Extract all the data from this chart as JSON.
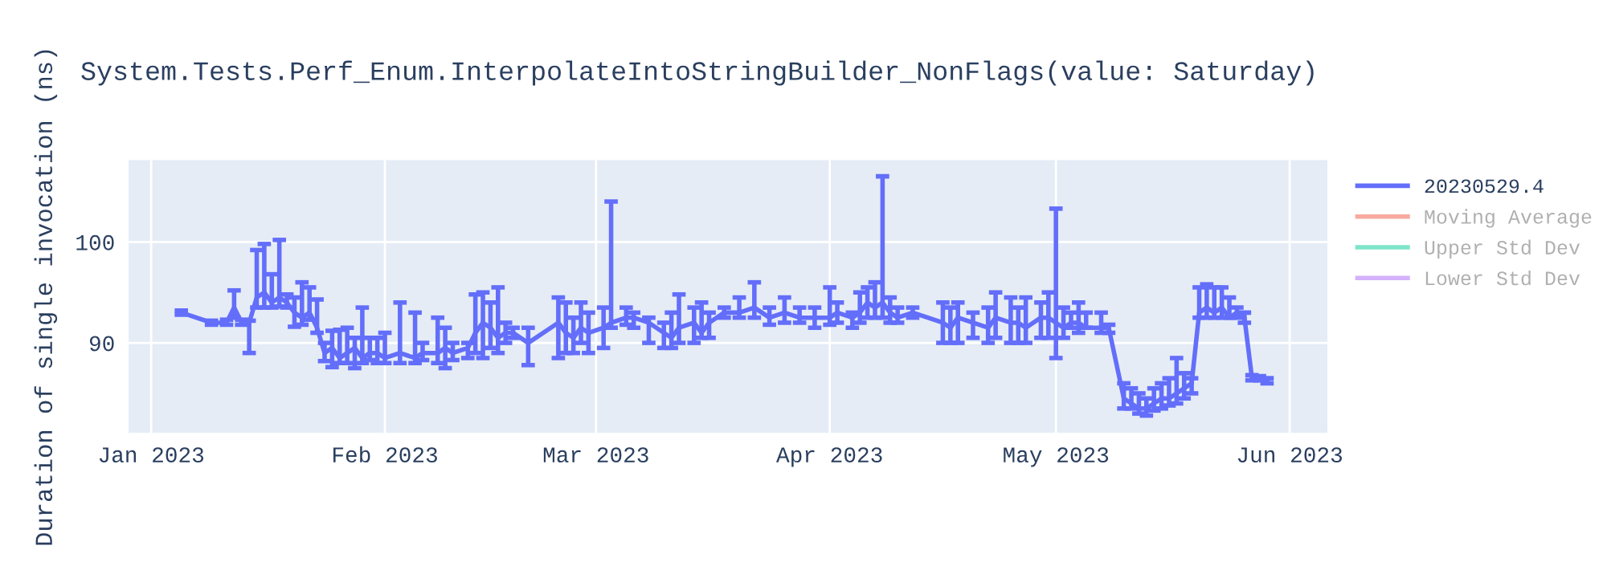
{
  "chart_data": {
    "type": "line",
    "title": "System.Tests.Perf_Enum.InterpolateIntoStringBuilder_NonFlags(value: Saturday)",
    "ylabel": "Duration of single invocation (ns)",
    "xlim": [
      "2022-12-29",
      "2023-06-06"
    ],
    "ylim": [
      81.1,
      108.1
    ],
    "xticks": [
      {
        "value": "2023-01-01",
        "label": "Jan 2023"
      },
      {
        "value": "2023-02-01",
        "label": "Feb 2023"
      },
      {
        "value": "2023-03-01",
        "label": "Mar 2023"
      },
      {
        "value": "2023-04-01",
        "label": "Apr 2023"
      },
      {
        "value": "2023-05-01",
        "label": "May 2023"
      },
      {
        "value": "2023-06-01",
        "label": "Jun 2023"
      }
    ],
    "yticks": [
      90,
      100
    ],
    "grid": true,
    "legend": "right",
    "marker": "none",
    "line_style": "solid",
    "x": [
      "2023-01-05",
      "2023-01-09",
      "2023-01-11",
      "2023-01-12",
      "2023-01-13",
      "2023-01-14",
      "2023-01-15",
      "2023-01-16",
      "2023-01-17",
      "2023-01-18",
      "2023-01-19",
      "2023-01-20",
      "2023-01-21",
      "2023-01-22",
      "2023-01-23",
      "2023-01-24",
      "2023-01-25",
      "2023-01-26",
      "2023-01-27",
      "2023-01-28",
      "2023-01-29",
      "2023-01-30",
      "2023-01-31",
      "2023-02-01",
      "2023-02-03",
      "2023-02-05",
      "2023-02-06",
      "2023-02-08",
      "2023-02-09",
      "2023-02-10",
      "2023-02-12",
      "2023-02-13",
      "2023-02-14",
      "2023-02-15",
      "2023-02-16",
      "2023-02-17",
      "2023-02-18",
      "2023-02-20",
      "2023-02-24",
      "2023-02-25",
      "2023-02-26",
      "2023-02-27",
      "2023-02-28",
      "2023-03-02",
      "2023-03-03",
      "2023-03-05",
      "2023-03-06",
      "2023-03-08",
      "2023-03-10",
      "2023-03-11",
      "2023-03-12",
      "2023-03-14",
      "2023-03-15",
      "2023-03-16",
      "2023-03-18",
      "2023-03-20",
      "2023-03-22",
      "2023-03-24",
      "2023-03-26",
      "2023-03-28",
      "2023-03-30",
      "2023-04-01",
      "2023-04-02",
      "2023-04-04",
      "2023-04-05",
      "2023-04-06",
      "2023-04-07",
      "2023-04-08",
      "2023-04-09",
      "2023-04-10",
      "2023-04-12",
      "2023-04-16",
      "2023-04-17",
      "2023-04-18",
      "2023-04-20",
      "2023-04-22",
      "2023-04-23",
      "2023-04-25",
      "2023-04-26",
      "2023-04-27",
      "2023-04-29",
      "2023-04-30",
      "2023-05-01",
      "2023-05-02",
      "2023-05-03",
      "2023-05-04",
      "2023-05-05",
      "2023-05-07",
      "2023-05-08",
      "2023-05-10",
      "2023-05-11",
      "2023-05-12",
      "2023-05-13",
      "2023-05-14",
      "2023-05-15",
      "2023-05-16",
      "2023-05-17",
      "2023-05-18",
      "2023-05-19",
      "2023-05-20",
      "2023-05-21",
      "2023-05-22",
      "2023-05-23",
      "2023-05-24",
      "2023-05-25",
      "2023-05-26",
      "2023-05-27",
      "2023-05-28",
      "2023-05-29"
    ],
    "series": [
      {
        "name": "20230529.4",
        "color": "#636efa",
        "values": [
          93.0,
          92.0,
          92.0,
          93.5,
          92.0,
          92.0,
          94.5,
          95.0,
          94.0,
          94.5,
          94.0,
          93.0,
          92.5,
          93.0,
          91.5,
          89.0,
          89.5,
          88.5,
          89.0,
          89.5,
          88.5,
          89.0,
          89.0,
          88.5,
          89.0,
          88.5,
          89.0,
          89.0,
          89.5,
          89.0,
          89.5,
          91.0,
          92.0,
          91.5,
          90.5,
          91.0,
          91.0,
          90.0,
          92.0,
          91.0,
          90.5,
          91.5,
          91.0,
          91.5,
          92.0,
          92.5,
          92.5,
          92.0,
          91.0,
          90.5,
          91.5,
          92.0,
          91.0,
          92.0,
          93.0,
          93.0,
          93.5,
          92.5,
          93.0,
          92.5,
          92.5,
          92.5,
          93.0,
          92.5,
          93.0,
          94.0,
          93.5,
          94.0,
          93.0,
          92.5,
          93.0,
          92.0,
          91.5,
          92.5,
          92.0,
          91.5,
          92.5,
          92.0,
          92.0,
          91.5,
          92.5,
          92.5,
          92.0,
          91.5,
          92.0,
          92.0,
          91.5,
          91.5,
          91.5,
          84.5,
          84.0,
          83.5,
          83.5,
          84.0,
          84.5,
          84.5,
          85.0,
          85.5,
          86.0,
          93.0,
          93.5,
          93.0,
          93.5,
          92.5,
          93.0,
          92.5,
          86.5,
          86.5,
          86.2
        ],
        "errors": [
          [
            92.8,
            93.2
          ],
          [
            91.8,
            92.2
          ],
          [
            91.8,
            92.3
          ],
          [
            92.5,
            95.2
          ],
          [
            91.8,
            92.3
          ],
          [
            89.0,
            92.2
          ],
          [
            93.5,
            99.2
          ],
          [
            93.5,
            99.8
          ],
          [
            93.5,
            96.8
          ],
          [
            93.6,
            100.2
          ],
          [
            93.5,
            94.8
          ],
          [
            91.6,
            94.5
          ],
          [
            91.8,
            96.0
          ],
          [
            92.3,
            95.5
          ],
          [
            91.0,
            94.3
          ],
          [
            88.2,
            90.0
          ],
          [
            87.6,
            91.2
          ],
          [
            88.0,
            91.3
          ],
          [
            88.0,
            91.5
          ],
          [
            87.5,
            90.5
          ],
          [
            88.0,
            93.5
          ],
          [
            88.3,
            90.5
          ],
          [
            88.0,
            90.5
          ],
          [
            88.0,
            91.0
          ],
          [
            88.0,
            94.0
          ],
          [
            88.0,
            93.0
          ],
          [
            88.3,
            90.0
          ],
          [
            88.0,
            92.5
          ],
          [
            87.5,
            91.5
          ],
          [
            88.3,
            90.0
          ],
          [
            88.5,
            90.0
          ],
          [
            89.0,
            94.8
          ],
          [
            88.5,
            95.0
          ],
          [
            89.5,
            94.0
          ],
          [
            89.0,
            95.5
          ],
          [
            90.0,
            92.0
          ],
          [
            90.5,
            91.5
          ],
          [
            87.8,
            91.5
          ],
          [
            88.5,
            94.5
          ],
          [
            89.0,
            94.0
          ],
          [
            89.0,
            92.5
          ],
          [
            90.0,
            94.0
          ],
          [
            89.0,
            93.0
          ],
          [
            89.5,
            93.5
          ],
          [
            91.5,
            104.0
          ],
          [
            91.8,
            93.5
          ],
          [
            91.5,
            93.0
          ],
          [
            90.0,
            92.5
          ],
          [
            89.5,
            92.0
          ],
          [
            89.5,
            93.0
          ],
          [
            90.0,
            94.8
          ],
          [
            90.0,
            93.5
          ],
          [
            90.5,
            94.0
          ],
          [
            90.5,
            93.0
          ],
          [
            92.5,
            93.5
          ],
          [
            92.5,
            94.5
          ],
          [
            92.5,
            96.0
          ],
          [
            91.8,
            93.5
          ],
          [
            92.0,
            94.5
          ],
          [
            92.0,
            93.5
          ],
          [
            91.5,
            93.5
          ],
          [
            91.8,
            95.5
          ],
          [
            92.0,
            94.0
          ],
          [
            91.5,
            93.0
          ],
          [
            92.0,
            95.0
          ],
          [
            92.5,
            95.5
          ],
          [
            92.5,
            96.0
          ],
          [
            92.5,
            106.5
          ],
          [
            92.0,
            94.5
          ],
          [
            92.0,
            93.5
          ],
          [
            92.5,
            93.5
          ],
          [
            90.0,
            94.0
          ],
          [
            90.0,
            93.5
          ],
          [
            90.0,
            94.0
          ],
          [
            90.5,
            93.0
          ],
          [
            90.0,
            93.5
          ],
          [
            90.5,
            95.0
          ],
          [
            90.0,
            94.5
          ],
          [
            90.0,
            93.5
          ],
          [
            90.0,
            94.5
          ],
          [
            90.5,
            94.0
          ],
          [
            90.5,
            95.0
          ],
          [
            88.5,
            103.3
          ],
          [
            90.5,
            93.5
          ],
          [
            91.5,
            93.0
          ],
          [
            91.0,
            94.0
          ],
          [
            91.5,
            93.0
          ],
          [
            91.0,
            93.0
          ],
          [
            91.0,
            91.8
          ],
          [
            83.5,
            86.0
          ],
          [
            83.5,
            85.5
          ],
          [
            83.0,
            85.0
          ],
          [
            82.8,
            84.5
          ],
          [
            83.3,
            85.5
          ],
          [
            83.5,
            86.0
          ],
          [
            83.8,
            86.5
          ],
          [
            84.0,
            88.5
          ],
          [
            84.5,
            87.0
          ],
          [
            85.0,
            86.5
          ],
          [
            92.5,
            95.5
          ],
          [
            92.5,
            95.8
          ],
          [
            92.5,
            95.5
          ],
          [
            92.5,
            95.5
          ],
          [
            92.5,
            94.5
          ],
          [
            92.5,
            93.5
          ],
          [
            92.0,
            93.0
          ],
          [
            86.3,
            86.8
          ],
          [
            86.3,
            86.7
          ],
          [
            86.0,
            86.5
          ]
        ]
      },
      {
        "name": "Moving Average",
        "color": "#ef553b",
        "values": [
          null,
          null,
          null,
          null,
          null,
          null,
          null,
          null,
          null,
          null,
          null,
          null,
          null,
          null,
          null,
          null,
          null,
          null,
          null,
          null,
          null,
          null,
          null,
          null,
          null,
          null,
          null,
          null,
          null,
          null,
          null,
          null,
          null,
          null,
          null,
          null,
          null,
          null,
          null,
          null,
          null,
          null,
          null,
          null,
          null,
          null,
          null,
          null,
          null,
          null,
          null,
          null,
          null,
          null,
          null,
          null,
          null,
          null,
          null,
          null,
          null,
          null,
          null,
          null,
          null,
          null,
          null,
          null,
          null,
          null,
          null,
          null,
          null,
          null,
          null,
          null,
          null,
          null,
          null,
          null,
          null,
          null,
          null,
          null,
          null,
          null,
          null,
          null,
          null,
          null,
          null,
          null,
          null,
          null,
          null,
          null,
          null,
          null,
          null,
          null,
          null,
          null,
          null,
          null,
          null,
          null,
          null,
          null,
          null
        ]
      },
      {
        "name": "Upper Std Dev",
        "color": "#00cc96",
        "values": [
          null,
          null,
          null,
          null,
          null,
          null,
          null,
          null,
          null,
          null,
          null,
          null,
          null,
          null,
          null,
          null,
          null,
          null,
          null,
          null,
          null,
          null,
          null,
          null,
          null,
          null,
          null,
          null,
          null,
          null,
          null,
          null,
          null,
          null,
          null,
          null,
          null,
          null,
          null,
          null,
          null,
          null,
          null,
          null,
          null,
          null,
          null,
          null,
          null,
          null,
          null,
          null,
          null,
          null,
          null,
          null,
          null,
          null,
          null,
          null,
          null,
          null,
          null,
          null,
          null,
          null,
          null,
          null,
          null,
          null,
          null,
          null,
          null,
          null,
          null,
          null,
          null,
          null,
          null,
          null,
          null,
          null,
          null,
          null,
          null,
          null,
          null,
          null,
          null,
          null,
          null,
          null,
          null,
          null,
          null,
          null,
          null,
          null,
          null,
          null,
          null,
          null,
          null,
          null,
          null,
          null,
          null,
          null,
          null
        ]
      },
      {
        "name": "Lower Std Dev",
        "color": "#ab63fa",
        "values": [
          null,
          null,
          null,
          null,
          null,
          null,
          null,
          null,
          null,
          null,
          null,
          null,
          null,
          null,
          null,
          null,
          null,
          null,
          null,
          null,
          null,
          null,
          null,
          null,
          null,
          null,
          null,
          null,
          null,
          null,
          null,
          null,
          null,
          null,
          null,
          null,
          null,
          null,
          null,
          null,
          null,
          null,
          null,
          null,
          null,
          null,
          null,
          null,
          null,
          null,
          null,
          null,
          null,
          null,
          null,
          null,
          null,
          null,
          null,
          null,
          null,
          null,
          null,
          null,
          null,
          null,
          null,
          null,
          null,
          null,
          null,
          null,
          null,
          null,
          null,
          null,
          null,
          null,
          null,
          null,
          null,
          null,
          null,
          null,
          null,
          null,
          null,
          null,
          null,
          null,
          null,
          null,
          null,
          null,
          null,
          null,
          null,
          null,
          null,
          null,
          null,
          null,
          null,
          null,
          null,
          null,
          null,
          null,
          null
        ]
      }
    ]
  }
}
